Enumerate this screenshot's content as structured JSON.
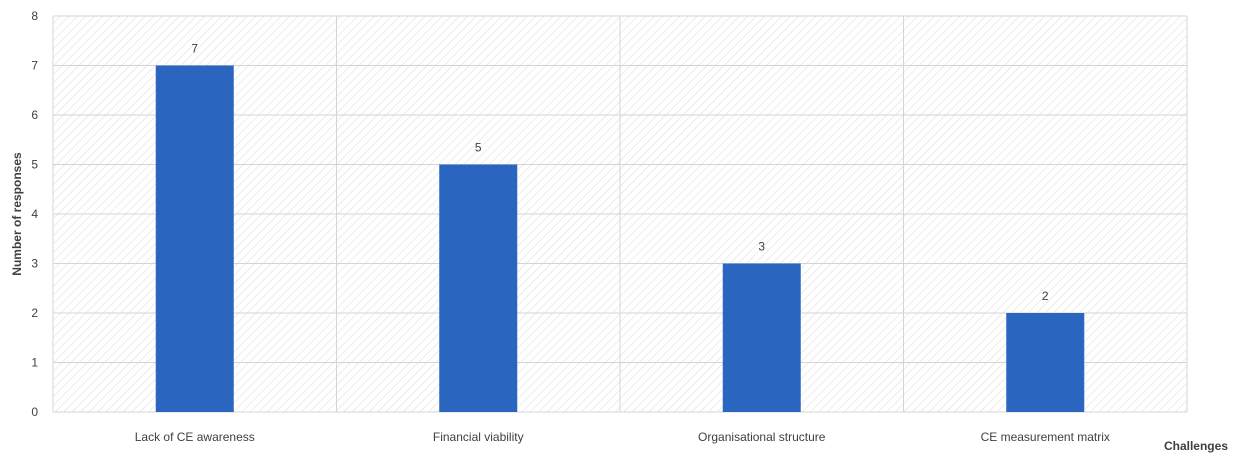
{
  "chart_data": {
    "type": "bar",
    "categories": [
      "Lack of CE awareness",
      "Financial viability",
      "Organisational structure",
      "CE measurement matrix"
    ],
    "values": [
      7,
      5,
      3,
      2
    ],
    "title": "",
    "xlabel": "Challenges",
    "ylabel": "Number of responses",
    "ylim": [
      0,
      8
    ],
    "yticks": [
      "0",
      "1",
      "2",
      "3",
      "4",
      "5",
      "6",
      "7",
      "8"
    ],
    "data_labels": [
      "7",
      "5",
      "3",
      "2"
    ],
    "grid": true,
    "legend": "none",
    "colors": {
      "bar": "#2a66bf",
      "grid": "#d4d4d4",
      "hatch": "#dadada",
      "text": "#404040"
    }
  }
}
